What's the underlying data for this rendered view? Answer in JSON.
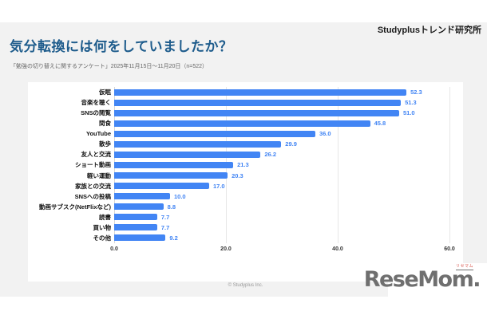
{
  "page": {
    "brand": "Studyplusトレンド研究所",
    "title": "気分転換には何をしていましたか？",
    "subtitle": "「勉強の切り替えに関するアンケート」2025年11月15日～11月20日（n=522）",
    "footer_copyright": "© Studyplus Inc.",
    "logo": {
      "text": "ReseMom.",
      "ruby": "リセマム",
      "text_color": "#6f6f6f",
      "ruby_color": "#d9534a"
    }
  },
  "chart_data": {
    "type": "bar",
    "orientation": "horizontal",
    "title": "気分転換には何をしていましたか？",
    "categories": [
      "仮眠",
      "音楽を聴く",
      "SNSの閲覧",
      "間食",
      "YouTube",
      "散歩",
      "友人と交流",
      "ショート動画",
      "軽い運動",
      "家族との交流",
      "SNSへの投稿",
      "動画サブスク(NetFlixなど)",
      "読書",
      "買い物",
      "その他"
    ],
    "values": [
      52.3,
      51.3,
      51.0,
      45.8,
      36.0,
      29.9,
      26.2,
      21.3,
      20.3,
      17.0,
      10.0,
      8.8,
      7.7,
      7.7,
      9.2
    ],
    "xlabel": "",
    "ylabel": "",
    "xlim": [
      0,
      60
    ],
    "xticks": [
      0,
      20,
      40,
      60
    ],
    "xtick_labels": [
      "0.0",
      "20.0",
      "40.0",
      "60.0"
    ],
    "grid": true,
    "bar_color": "#4285f4",
    "value_label_color": "#4285f4",
    "legend": "none"
  }
}
